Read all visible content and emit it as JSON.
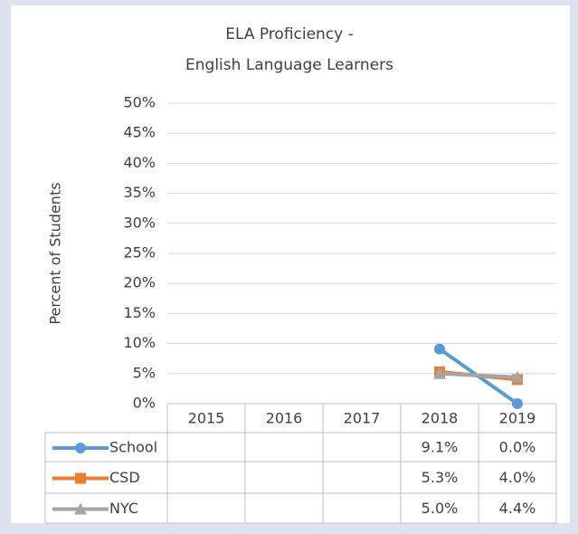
{
  "chart_data": {
    "type": "line",
    "title": [
      "ELA Proficiency -",
      "English Language Learners"
    ],
    "y_label": "Percent of Students",
    "categories": [
      "2015",
      "2016",
      "2017",
      "2018",
      "2019"
    ],
    "series": [
      {
        "name": "School",
        "color": "#5b9bd5",
        "marker": "circle",
        "values": [
          null,
          null,
          null,
          9.1,
          0.0
        ],
        "value_labels": [
          null,
          null,
          null,
          "9.1%",
          "0.0%"
        ]
      },
      {
        "name": "CSD",
        "color": "#ed7d31",
        "marker": "square",
        "values": [
          null,
          null,
          null,
          5.3,
          4.0
        ],
        "value_labels": [
          null,
          null,
          null,
          "5.3%",
          "4.0%"
        ]
      },
      {
        "name": "NYC",
        "color": "#a5a5a5",
        "marker": "triangle",
        "values": [
          null,
          null,
          null,
          5.0,
          4.4
        ],
        "value_labels": [
          null,
          null,
          null,
          "5.0%",
          "4.4%"
        ]
      }
    ],
    "ylim": [
      0,
      50
    ],
    "yticks": [
      {
        "value": 0,
        "label": "0%"
      },
      {
        "value": 5,
        "label": "5%"
      },
      {
        "value": 10,
        "label": "10%"
      },
      {
        "value": 15,
        "label": "15%"
      },
      {
        "value": 20,
        "label": "20%"
      },
      {
        "value": 25,
        "label": "25%"
      },
      {
        "value": 30,
        "label": "30%"
      },
      {
        "value": 35,
        "label": "35%"
      },
      {
        "value": 40,
        "label": "40%"
      },
      {
        "value": 45,
        "label": "45%"
      },
      {
        "value": 50,
        "label": "50%"
      }
    ],
    "grid": true,
    "data_table": true
  }
}
